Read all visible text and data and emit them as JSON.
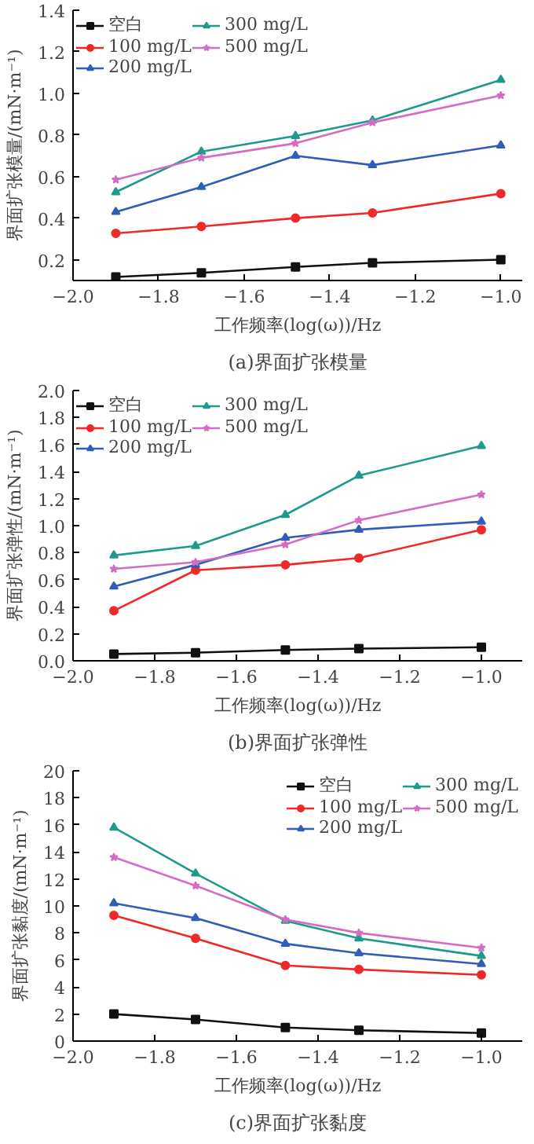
{
  "chart_data": [
    {
      "type": "line",
      "title": "(a)界面扩张模量",
      "xlabel": "工作频率(log(ω))/Hz",
      "ylabel": "界面扩张模量/(mN·m⁻¹)",
      "x": [
        -1.9,
        -1.7,
        -1.48,
        -1.3,
        -1.0
      ],
      "xlim": [
        -2.0,
        -0.95
      ],
      "xticks": [
        {
          "value": -2.0,
          "label": "−2.0"
        },
        {
          "value": -1.8,
          "label": "−1.8"
        },
        {
          "value": -1.6,
          "label": "−1.6"
        },
        {
          "value": -1.4,
          "label": "−1.4"
        },
        {
          "value": -1.2,
          "label": "−1.2"
        },
        {
          "value": -1.0,
          "label": "−1.0"
        }
      ],
      "ylim": [
        0.1,
        1.4
      ],
      "yticks": [
        0.2,
        0.4,
        0.6,
        0.8,
        {
          "value": 1,
          "label": "1.0"
        },
        1.2,
        1.4
      ],
      "legend": "top left",
      "grid": false,
      "series": [
        {
          "name": "空白",
          "color": "#111111",
          "marker": "square",
          "values": [
            0.117,
            0.137,
            0.165,
            0.185,
            0.2
          ]
        },
        {
          "name": "100 mg/L",
          "color": "#f02828",
          "marker": "circle",
          "values": [
            0.327,
            0.36,
            0.4,
            0.425,
            0.518
          ]
        },
        {
          "name": "200 mg/L",
          "color": "#2f5db8",
          "marker": "triangle",
          "values": [
            0.43,
            0.55,
            0.7,
            0.655,
            0.75
          ]
        },
        {
          "name": "300 mg/L",
          "color": "#1e9a8c",
          "marker": "triangle",
          "values": [
            0.525,
            0.72,
            0.795,
            0.87,
            1.065
          ]
        },
        {
          "name": "500 mg/L",
          "color": "#d46cc4",
          "marker": "star",
          "values": [
            0.585,
            0.69,
            0.76,
            0.86,
            0.99
          ]
        }
      ]
    },
    {
      "type": "line",
      "title": "(b)界面扩张弹性",
      "xlabel": "工作频率(log(ω))/Hz",
      "ylabel": "界面扩张弹性/(mN·m⁻¹)",
      "x": [
        -1.9,
        -1.7,
        -1.48,
        -1.3,
        -1.0
      ],
      "xlim": [
        -2.0,
        -0.9
      ],
      "xticks": [
        {
          "value": -2.0,
          "label": "−2.0"
        },
        {
          "value": -1.8,
          "label": "−1.8"
        },
        {
          "value": -1.6,
          "label": "−1.6"
        },
        {
          "value": -1.4,
          "label": "−1.4"
        },
        {
          "value": -1.2,
          "label": "−1.2"
        },
        {
          "value": -1.0,
          "label": "−1.0"
        }
      ],
      "ylim": [
        0,
        2.0
      ],
      "yticks": [
        {
          "value": 0,
          "label": "0.0"
        },
        0.2,
        0.4,
        0.6,
        0.8,
        {
          "value": 1,
          "label": "1.0"
        },
        1.2,
        1.4,
        1.6,
        1.8,
        {
          "value": 2,
          "label": "2.0"
        }
      ],
      "legend": "top left",
      "grid": false,
      "series": [
        {
          "name": "空白",
          "color": "#111111",
          "marker": "square",
          "values": [
            0.05,
            0.06,
            0.08,
            0.09,
            0.1
          ]
        },
        {
          "name": "100 mg/L",
          "color": "#f02828",
          "marker": "circle",
          "values": [
            0.37,
            0.67,
            0.71,
            0.76,
            0.97
          ]
        },
        {
          "name": "200 mg/L",
          "color": "#2f5db8",
          "marker": "triangle",
          "values": [
            0.55,
            0.71,
            0.91,
            0.97,
            1.03
          ]
        },
        {
          "name": "300 mg/L",
          "color": "#1e9a8c",
          "marker": "triangle",
          "values": [
            0.78,
            0.85,
            1.08,
            1.37,
            1.59
          ]
        },
        {
          "name": "500 mg/L",
          "color": "#d46cc4",
          "marker": "star",
          "values": [
            0.68,
            0.73,
            0.86,
            1.04,
            1.23
          ]
        }
      ]
    },
    {
      "type": "line",
      "title": "(c)界面扩张黏度",
      "xlabel": "工作频率(log(ω))/Hz",
      "ylabel": "界面扩张黏度/(mN·m⁻¹)",
      "x": [
        -1.9,
        -1.7,
        -1.48,
        -1.3,
        -1.0
      ],
      "xlim": [
        -2.0,
        -0.9
      ],
      "xticks": [
        {
          "value": -2.0,
          "label": "−2.0"
        },
        {
          "value": -1.8,
          "label": "−1.8"
        },
        {
          "value": -1.6,
          "label": "−1.6"
        },
        {
          "value": -1.4,
          "label": "−1.4"
        },
        {
          "value": -1.2,
          "label": "−1.2"
        },
        {
          "value": -1.0,
          "label": "−1.0"
        }
      ],
      "ylim": [
        0,
        20
      ],
      "yticks": [
        0,
        2,
        4,
        6,
        8,
        10,
        12,
        14,
        16,
        18,
        20
      ],
      "legend": "top right",
      "grid": false,
      "series": [
        {
          "name": "空白",
          "color": "#111111",
          "marker": "square",
          "values": [
            2.0,
            1.6,
            1.0,
            0.8,
            0.6
          ]
        },
        {
          "name": "100 mg/L",
          "color": "#f02828",
          "marker": "circle",
          "values": [
            9.3,
            7.6,
            5.6,
            5.3,
            4.9
          ]
        },
        {
          "name": "200 mg/L",
          "color": "#2f5db8",
          "marker": "triangle",
          "values": [
            10.2,
            9.1,
            7.2,
            6.5,
            5.7
          ]
        },
        {
          "name": "300 mg/L",
          "color": "#1e9a8c",
          "marker": "triangle",
          "values": [
            15.8,
            12.4,
            8.9,
            7.6,
            6.3
          ]
        },
        {
          "name": "500 mg/L",
          "color": "#d46cc4",
          "marker": "star",
          "values": [
            13.6,
            11.5,
            9.0,
            8.0,
            6.9
          ]
        }
      ]
    }
  ]
}
